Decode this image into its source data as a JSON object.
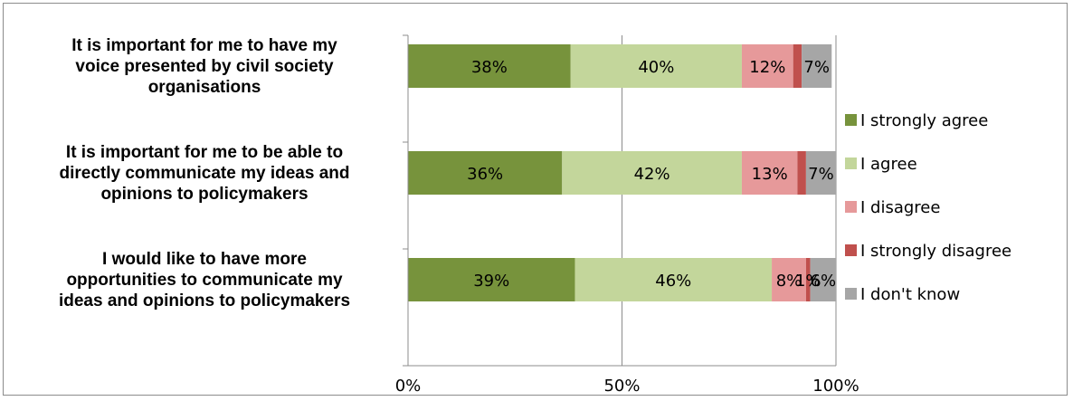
{
  "chart_data": {
    "type": "bar",
    "orientation": "horizontal",
    "stacked": true,
    "percent_scale": true,
    "categories": [
      [
        "It is important for me to have my",
        "voice presented by civil society",
        "organisations"
      ],
      [
        "It is important for me to be able to",
        "directly communicate my ideas and",
        "opinions to policymakers"
      ],
      [
        "I would like to have more",
        "opportunities to communicate my",
        "ideas and opinions to policymakers"
      ]
    ],
    "series": [
      {
        "name": "I strongly agree",
        "color": "#77933c",
        "values": [
          38,
          36,
          39
        ],
        "labels": [
          "38%",
          "36%",
          "39%"
        ]
      },
      {
        "name": "I agree",
        "color": "#c3d69b",
        "values": [
          40,
          42,
          46
        ],
        "labels": [
          "40%",
          "42%",
          "46%"
        ]
      },
      {
        "name": "I disagree",
        "color": "#e6999a",
        "values": [
          12,
          13,
          8
        ],
        "labels": [
          "12%",
          "13%",
          "8%"
        ]
      },
      {
        "name": "I strongly disagree",
        "color": "#c0504d",
        "values": [
          2,
          2,
          1
        ],
        "labels": [
          "",
          "",
          "1%"
        ]
      },
      {
        "name": "I don't know",
        "color": "#a6a6a6",
        "values": [
          7,
          7,
          6
        ],
        "labels": [
          "7%",
          "7%",
          "6%"
        ]
      }
    ],
    "x_ticks": [
      "0%",
      "50%",
      "100%"
    ],
    "xlim": [
      0,
      100
    ],
    "grid": true,
    "legend_position": "right"
  }
}
